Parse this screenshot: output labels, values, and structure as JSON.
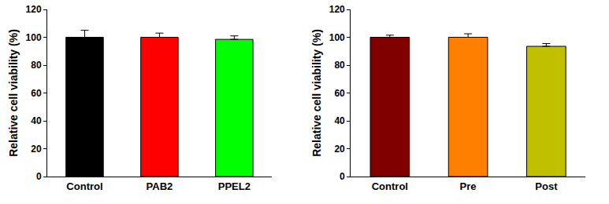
{
  "chart_data": [
    {
      "type": "bar",
      "y_label": "Relative cell viability (%)",
      "categories": [
        "Control",
        "PAB2",
        "PPEL2"
      ],
      "values": [
        100,
        100,
        98.5
      ],
      "errors": [
        5,
        3,
        2.5
      ],
      "colors": [
        "#000000",
        "#ff0000",
        "#00ff00"
      ],
      "ylim": [
        0,
        120
      ],
      "yticks": [
        0,
        20,
        40,
        60,
        80,
        100,
        120
      ],
      "grid": false
    },
    {
      "type": "bar",
      "y_label": "Relative cell viability (%)",
      "categories": [
        "Control",
        "Pre",
        "Post"
      ],
      "values": [
        100,
        100,
        93.5
      ],
      "errors": [
        1.5,
        2.5,
        2
      ],
      "colors": [
        "#800000",
        "#ff8000",
        "#c0c000"
      ],
      "ylim": [
        0,
        120
      ],
      "yticks": [
        0,
        20,
        40,
        60,
        80,
        100,
        120
      ],
      "grid": false
    }
  ]
}
